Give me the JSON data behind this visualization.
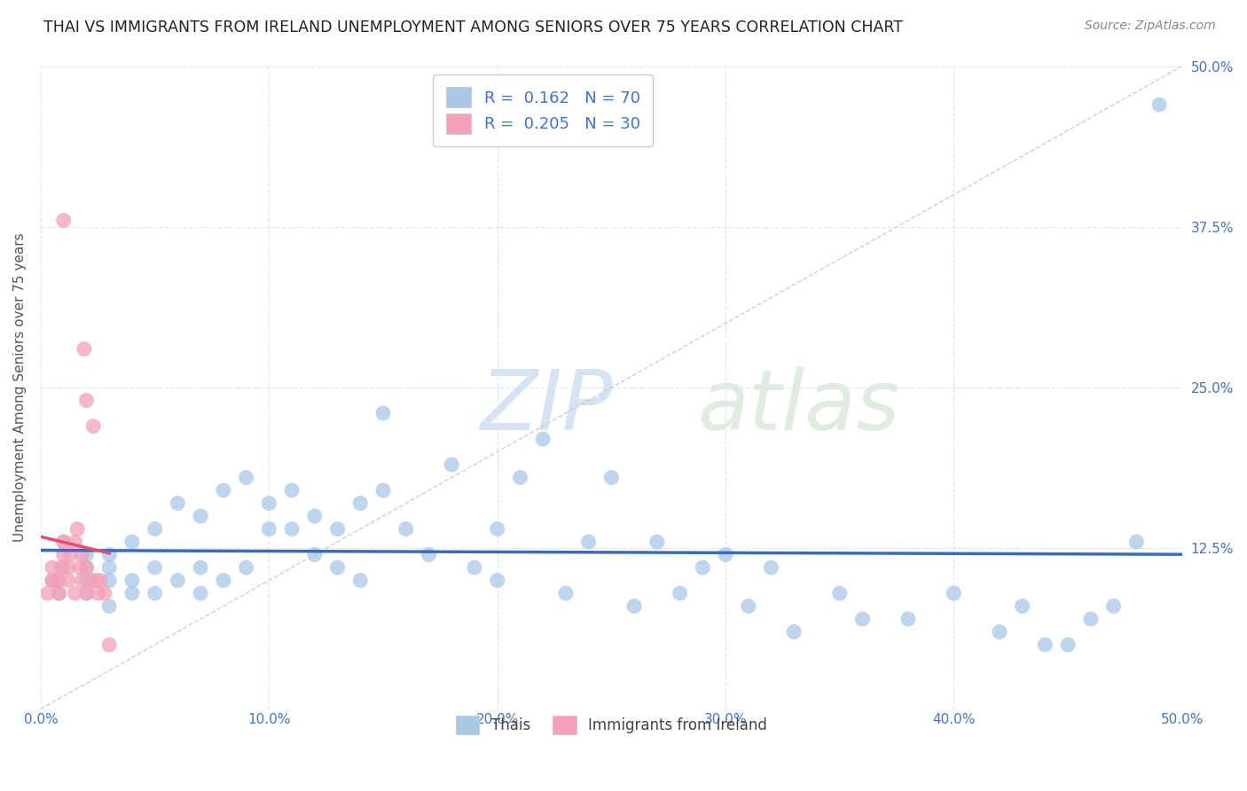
{
  "title": "THAI VS IMMIGRANTS FROM IRELAND UNEMPLOYMENT AMONG SENIORS OVER 75 YEARS CORRELATION CHART",
  "source": "Source: ZipAtlas.com",
  "ylabel": "Unemployment Among Seniors over 75 years",
  "xlim": [
    0.0,
    0.5
  ],
  "ylim": [
    0.0,
    0.5
  ],
  "xticks": [
    0.0,
    0.1,
    0.2,
    0.3,
    0.4,
    0.5
  ],
  "yticks": [
    0.0,
    0.125,
    0.25,
    0.375,
    0.5
  ],
  "xticklabels": [
    "0.0%",
    "10.0%",
    "20.0%",
    "30.0%",
    "40.0%",
    "50.0%"
  ],
  "yticklabels_right": [
    "",
    "12.5%",
    "25.0%",
    "37.5%",
    "50.0%"
  ],
  "legend_thai": "Thais",
  "legend_ireland": "Immigrants from Ireland",
  "thai_color": "#a8c8e8",
  "ireland_color": "#f4a0b8",
  "thai_line_color": "#3a6abf",
  "ireland_line_color": "#e05070",
  "diag_color": "#c8c8c8",
  "thai_R": 0.162,
  "thai_N": 70,
  "ireland_R": 0.205,
  "ireland_N": 30,
  "thai_scatter_x": [
    0.005,
    0.008,
    0.01,
    0.01,
    0.02,
    0.02,
    0.02,
    0.02,
    0.03,
    0.03,
    0.03,
    0.03,
    0.04,
    0.04,
    0.04,
    0.05,
    0.05,
    0.05,
    0.06,
    0.06,
    0.07,
    0.07,
    0.07,
    0.08,
    0.08,
    0.09,
    0.09,
    0.1,
    0.1,
    0.11,
    0.11,
    0.12,
    0.12,
    0.13,
    0.13,
    0.14,
    0.14,
    0.15,
    0.15,
    0.16,
    0.17,
    0.18,
    0.19,
    0.2,
    0.2,
    0.21,
    0.22,
    0.23,
    0.24,
    0.25,
    0.26,
    0.27,
    0.28,
    0.29,
    0.3,
    0.31,
    0.32,
    0.33,
    0.35,
    0.36,
    0.38,
    0.4,
    0.42,
    0.43,
    0.44,
    0.45,
    0.46,
    0.47,
    0.48,
    0.49
  ],
  "thai_scatter_y": [
    0.1,
    0.09,
    0.11,
    0.13,
    0.1,
    0.09,
    0.11,
    0.12,
    0.08,
    0.1,
    0.11,
    0.12,
    0.09,
    0.1,
    0.13,
    0.09,
    0.11,
    0.14,
    0.1,
    0.16,
    0.09,
    0.11,
    0.15,
    0.17,
    0.1,
    0.11,
    0.18,
    0.14,
    0.16,
    0.14,
    0.17,
    0.12,
    0.15,
    0.11,
    0.14,
    0.1,
    0.16,
    0.17,
    0.23,
    0.14,
    0.12,
    0.19,
    0.11,
    0.1,
    0.14,
    0.18,
    0.21,
    0.09,
    0.13,
    0.18,
    0.08,
    0.13,
    0.09,
    0.11,
    0.12,
    0.08,
    0.11,
    0.06,
    0.09,
    0.07,
    0.07,
    0.09,
    0.06,
    0.08,
    0.05,
    0.05,
    0.07,
    0.08,
    0.13,
    0.47
  ],
  "ireland_scatter_x": [
    0.003,
    0.005,
    0.005,
    0.007,
    0.008,
    0.008,
    0.009,
    0.01,
    0.01,
    0.01,
    0.012,
    0.012,
    0.013,
    0.015,
    0.015,
    0.016,
    0.017,
    0.018,
    0.018,
    0.019,
    0.02,
    0.02,
    0.02,
    0.022,
    0.023,
    0.024,
    0.025,
    0.026,
    0.028,
    0.03
  ],
  "ireland_scatter_y": [
    0.09,
    0.1,
    0.11,
    0.1,
    0.09,
    0.1,
    0.11,
    0.12,
    0.13,
    0.38,
    0.1,
    0.11,
    0.12,
    0.09,
    0.13,
    0.14,
    0.11,
    0.1,
    0.12,
    0.28,
    0.09,
    0.11,
    0.24,
    0.1,
    0.22,
    0.1,
    0.09,
    0.1,
    0.09,
    0.05
  ],
  "background_color": "#ffffff",
  "grid_color": "#dde8f0",
  "title_fontsize": 12.5,
  "axis_label_fontsize": 11,
  "tick_fontsize": 11,
  "legend_fontsize": 13
}
